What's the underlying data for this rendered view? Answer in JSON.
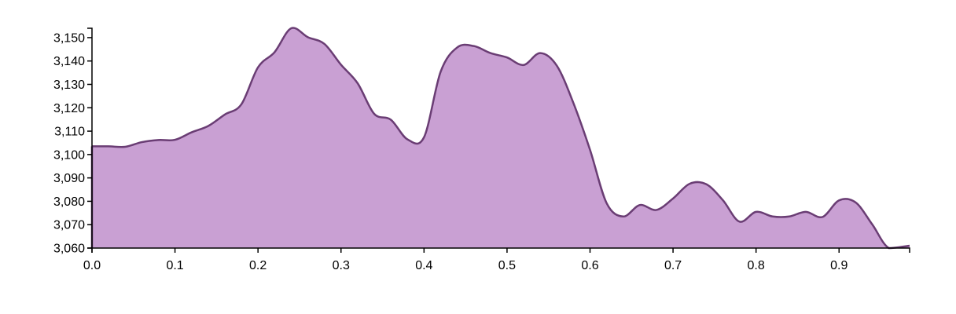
{
  "chart_data": {
    "type": "area",
    "title": "",
    "xlabel": "",
    "ylabel": "",
    "xlim": [
      0,
      0.985
    ],
    "ylim": [
      3060,
      3154
    ],
    "x_ticks": [
      0.0,
      0.1,
      0.2,
      0.3,
      0.4,
      0.5,
      0.6,
      0.7,
      0.8,
      0.9
    ],
    "x_tick_labels": [
      "0.0",
      "0.1",
      "0.2",
      "0.3",
      "0.4",
      "0.5",
      "0.6",
      "0.7",
      "0.8",
      "0.9"
    ],
    "y_ticks": [
      3060,
      3070,
      3080,
      3090,
      3100,
      3110,
      3120,
      3130,
      3140,
      3150
    ],
    "y_tick_labels": [
      "3,060",
      "3,070",
      "3,080",
      "3,090",
      "3,100",
      "3,110",
      "3,120",
      "3,130",
      "3,140",
      "3,150"
    ],
    "grid": false,
    "colors": {
      "fill": "#c9a0d3",
      "stroke": "#6a3d74"
    },
    "x": [
      0.0,
      0.02,
      0.04,
      0.06,
      0.08,
      0.1,
      0.12,
      0.14,
      0.16,
      0.18,
      0.2,
      0.22,
      0.24,
      0.26,
      0.28,
      0.3,
      0.32,
      0.34,
      0.36,
      0.38,
      0.4,
      0.42,
      0.44,
      0.46,
      0.48,
      0.5,
      0.52,
      0.54,
      0.56,
      0.58,
      0.6,
      0.62,
      0.64,
      0.66,
      0.68,
      0.7,
      0.72,
      0.74,
      0.76,
      0.78,
      0.8,
      0.82,
      0.84,
      0.86,
      0.88,
      0.9,
      0.92,
      0.94,
      0.96,
      0.985
    ],
    "values": [
      3103.5,
      3103.5,
      3103.3,
      3105.3,
      3106.2,
      3106.3,
      3109.5,
      3112.2,
      3117.1,
      3121.5,
      3137.3,
      3143.8,
      3154.0,
      3150.2,
      3147.3,
      3138.4,
      3130.5,
      3117.4,
      3114.9,
      3106.5,
      3107.4,
      3135.4,
      3145.8,
      3146.4,
      3143.4,
      3141.5,
      3138.3,
      3143.4,
      3138.0,
      3122.0,
      3102.0,
      3079.2,
      3073.5,
      3078.4,
      3076.3,
      3081.2,
      3087.5,
      3087.3,
      3080.5,
      3071.3,
      3075.5,
      3073.5,
      3073.5,
      3075.5,
      3073.3,
      3080.4,
      3079.5,
      3070.1,
      3059.5,
      3061.0
    ]
  }
}
